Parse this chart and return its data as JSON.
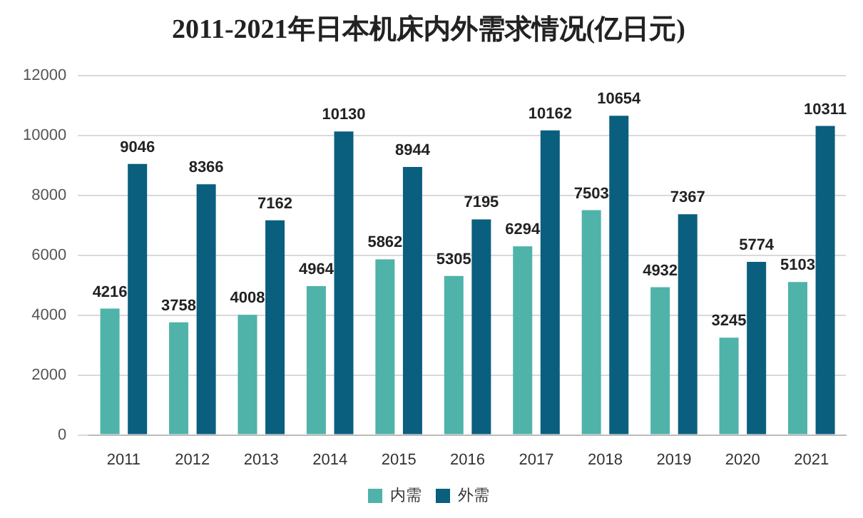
{
  "chart_data": {
    "type": "bar",
    "title": "2011-2021年日本机床内外需求情况(亿日元)",
    "categories": [
      "2011",
      "2012",
      "2013",
      "2014",
      "2015",
      "2016",
      "2017",
      "2018",
      "2019",
      "2020",
      "2021"
    ],
    "series": [
      {
        "name": "内需",
        "color": "#4fb3a9",
        "values": [
          4216,
          3758,
          4008,
          4964,
          5862,
          5305,
          6294,
          7503,
          4932,
          3245,
          5103
        ]
      },
      {
        "name": "外需",
        "color": "#0a5f7e",
        "values": [
          9046,
          8366,
          7162,
          10130,
          8944,
          7195,
          10162,
          10654,
          7367,
          5774,
          10311
        ]
      }
    ],
    "ylim": [
      0,
      12000
    ],
    "yticks": [
      0,
      2000,
      4000,
      6000,
      8000,
      10000,
      12000
    ],
    "grid": "y",
    "legend": "bottom",
    "data_labels": true
  }
}
